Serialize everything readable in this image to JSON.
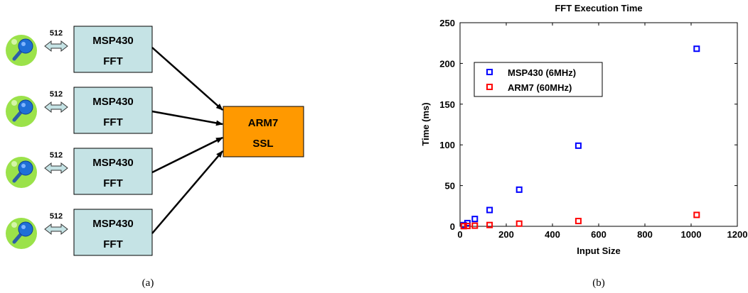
{
  "diagram": {
    "caption": "(a)",
    "blocks": [
      {
        "line1": "MSP430",
        "line2": "FFT",
        "link_label": "512"
      },
      {
        "line1": "MSP430",
        "line2": "FFT",
        "link_label": "512"
      },
      {
        "line1": "MSP430",
        "line2": "FFT",
        "link_label": "512"
      },
      {
        "line1": "MSP430",
        "line2": "FFT",
        "link_label": "512"
      }
    ],
    "target": {
      "line1": "ARM7",
      "line2": "SSL"
    },
    "colors": {
      "fft_block": "#c5e3e5",
      "target_block": "#ff9900",
      "mic_green": "#9be24a",
      "mic_blue": "#1f6fd6",
      "link_arrow": "#c5e3e5"
    },
    "icons": [
      "microphone-icon",
      "double-arrow-icon"
    ]
  },
  "chart_data": {
    "type": "scatter",
    "title": "FFT Execution Time",
    "xlabel": "Input Size",
    "ylabel": "Time (ms)",
    "xlim": [
      0,
      1200
    ],
    "ylim": [
      0,
      250
    ],
    "xticks": [
      0,
      200,
      400,
      600,
      800,
      1000,
      1200
    ],
    "yticks": [
      0,
      50,
      100,
      150,
      200,
      250
    ],
    "grid": false,
    "legend_position": "upper-left",
    "series": [
      {
        "name": "MSP430 (6MHz)",
        "color": "#0000ff",
        "points": [
          [
            16,
            1.5
          ],
          [
            32,
            4
          ],
          [
            64,
            9
          ],
          [
            128,
            20
          ],
          [
            256,
            45
          ],
          [
            512,
            99
          ],
          [
            1024,
            218
          ]
        ]
      },
      {
        "name": "ARM7 (60MHz)",
        "color": "#ff0000",
        "points": [
          [
            16,
            0.2
          ],
          [
            32,
            0.4
          ],
          [
            64,
            0.8
          ],
          [
            128,
            1.6
          ],
          [
            256,
            3.3
          ],
          [
            512,
            6.5
          ],
          [
            1024,
            14
          ]
        ]
      }
    ],
    "caption": "(b)"
  }
}
